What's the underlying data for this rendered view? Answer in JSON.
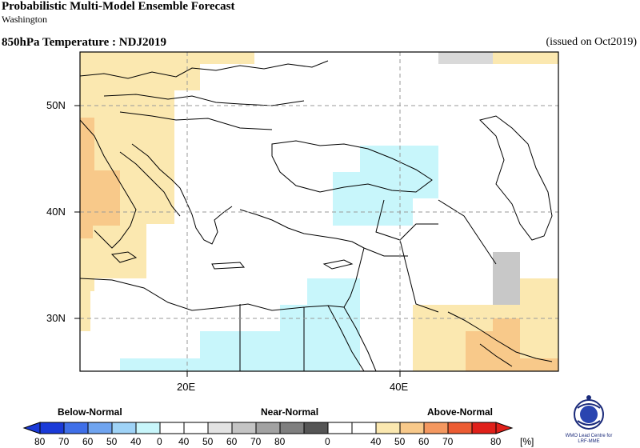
{
  "header": {
    "title": "Probabilistic Multi-Model Ensemble Forecast",
    "subtitle": "Washington",
    "variable": "850hPa Temperature : NDJ2019",
    "issued": "(issued on Oct2019)"
  },
  "map": {
    "lat_labels": [
      "50N",
      "40N",
      "30N"
    ],
    "lon_labels": [
      "20E",
      "40E"
    ],
    "gridlines": true
  },
  "legend": {
    "categories": [
      "Below-Normal",
      "Near-Normal",
      "Above-Normal"
    ],
    "below_labels": [
      "80",
      "70",
      "60",
      "50",
      "40",
      "0"
    ],
    "near_labels": [
      "40",
      "50",
      "60",
      "70",
      "80",
      "0"
    ],
    "above_labels": [
      "40",
      "50",
      "60",
      "70",
      "80"
    ],
    "unit": "[%]",
    "below_colors": [
      "#1a3ad8",
      "#3f6fe8",
      "#6fa4f0",
      "#9fd3f7",
      "#c8f6fb"
    ],
    "near_colors": [
      "#e3e3e3",
      "#c4c4c4",
      "#a2a2a2",
      "#7f7f7f",
      "#555555"
    ],
    "above_colors": [
      "#fbe8b0",
      "#f8c98a",
      "#f49860",
      "#ec5c33",
      "#e0201a"
    ]
  },
  "logo": {
    "caption_line1": "WMO Lead Centre for",
    "caption_line2": "LRF-MME"
  }
}
